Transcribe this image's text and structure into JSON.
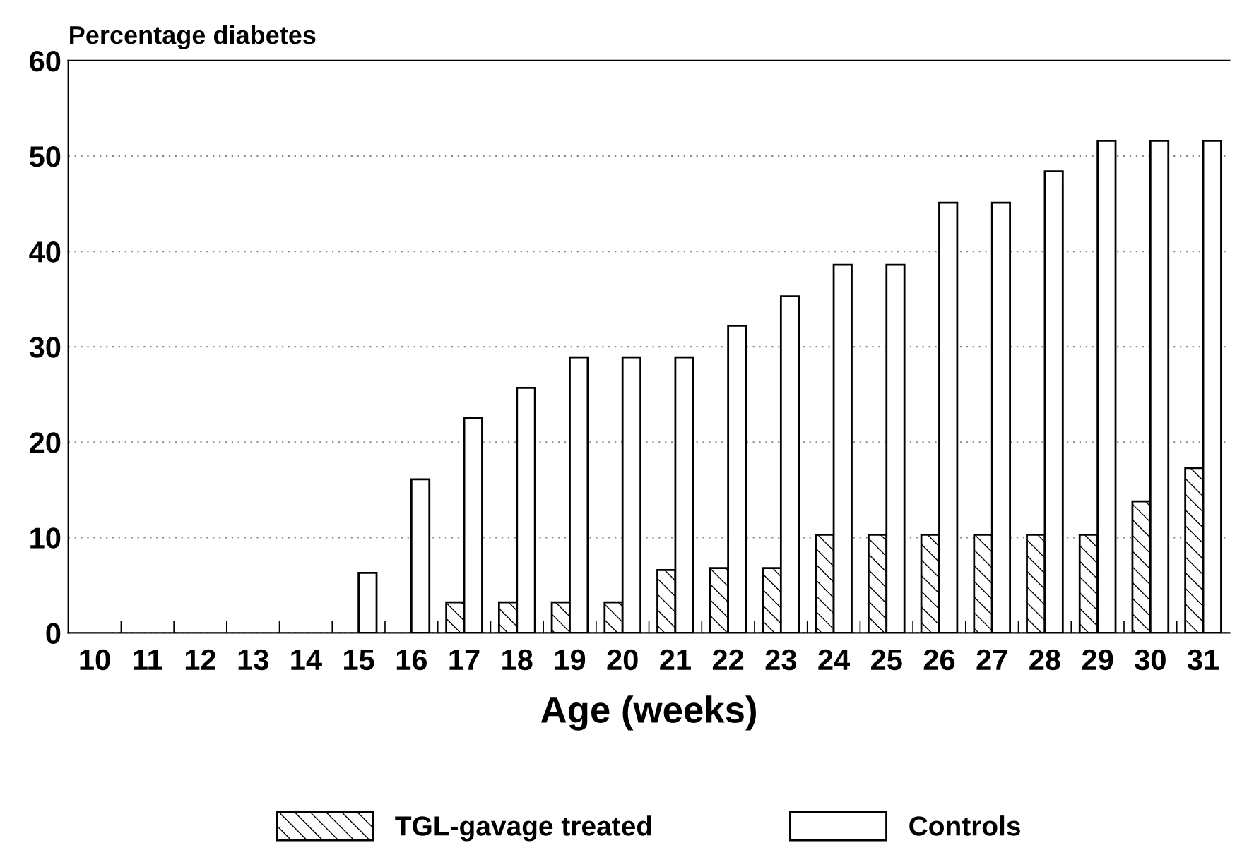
{
  "chart_data": {
    "type": "bar",
    "ylabel": "Percentage diabetes",
    "xlabel": "Age (weeks)",
    "categories": [
      "10",
      "11",
      "12",
      "13",
      "14",
      "15",
      "16",
      "17",
      "18",
      "19",
      "20",
      "21",
      "22",
      "23",
      "24",
      "25",
      "26",
      "27",
      "28",
      "29",
      "30",
      "31"
    ],
    "series": [
      {
        "name": "TGL-gavage treated",
        "color": "#000000",
        "values": [
          0,
          0,
          0,
          0,
          0,
          0,
          0,
          3.2,
          3.2,
          3.2,
          3.2,
          6.6,
          6.8,
          6.8,
          10.3,
          10.3,
          10.3,
          10.3,
          10.3,
          10.3,
          13.8,
          17.3
        ]
      },
      {
        "name": "Controls",
        "color": "#ffffff",
        "values": [
          0,
          0,
          0,
          0,
          0,
          6.3,
          16.1,
          22.5,
          25.7,
          28.9,
          28.9,
          28.9,
          32.2,
          35.3,
          38.6,
          38.6,
          45.1,
          45.1,
          48.4,
          51.6,
          51.6,
          51.6
        ]
      }
    ],
    "ylim": [
      0,
      60
    ],
    "yticks": [
      0,
      10,
      20,
      30,
      40,
      50,
      60
    ],
    "grid": "y",
    "legend": "bottom"
  }
}
